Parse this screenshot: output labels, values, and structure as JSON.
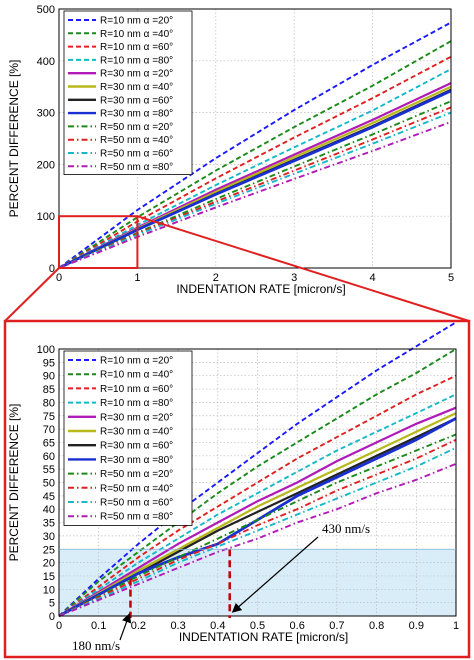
{
  "colors": {
    "zoom_box": "#e02020",
    "shade": "#cfe8f7",
    "marker": "#c00000"
  },
  "chart_data": [
    {
      "type": "line",
      "xlabel": "INDENTATION RATE [micron/s]",
      "ylabel": "PERCENT DIFFERENCE [%]",
      "xlim": [
        0,
        5
      ],
      "ylim": [
        0,
        500
      ],
      "xticks": [
        "0",
        "1",
        "2",
        "3",
        "4",
        "5"
      ],
      "yticks": [
        "0",
        "100",
        "200",
        "300",
        "400",
        "500"
      ],
      "grid": true,
      "legend_position": "top-left",
      "x": [
        0,
        1,
        2,
        3,
        4,
        5
      ],
      "series": [
        {
          "name": "R=10 nm α =20°",
          "color": "#1a1aff",
          "dash": "dashed",
          "values": [
            0,
            112,
            212,
            305,
            392,
            474
          ]
        },
        {
          "name": "R=10 nm α =40°",
          "color": "#1a8a1a",
          "dash": "dashed",
          "values": [
            0,
            98,
            188,
            272,
            352,
            438
          ]
        },
        {
          "name": "R=10 nm α =60°",
          "color": "#e02020",
          "dash": "dashed",
          "values": [
            0,
            90,
            173,
            252,
            328,
            408
          ]
        },
        {
          "name": "R=10 nm α =80°",
          "color": "#15b8c8",
          "dash": "dashed",
          "values": [
            0,
            83,
            160,
            233,
            304,
            384
          ]
        },
        {
          "name": "R=30 nm α =20°",
          "color": "#b01ab8",
          "dash": "solid",
          "values": [
            0,
            78,
            151,
            219,
            286,
            357
          ]
        },
        {
          "name": "R=30 nm α =40°",
          "color": "#b8b81a",
          "dash": "solid",
          "values": [
            0,
            76,
            147,
            214,
            280,
            350
          ]
        },
        {
          "name": "R=30 nm α =60°",
          "color": "#222222",
          "dash": "solid",
          "values": [
            0,
            74,
            143,
            209,
            274,
            344
          ]
        },
        {
          "name": "R=30 nm α =80°",
          "color": "#1a2fd0",
          "dash": "solid",
          "values": [
            0,
            74,
            142,
            207,
            272,
            342
          ]
        },
        {
          "name": "R=50 nm α =20°",
          "color": "#1a8a1a",
          "dash": "dashdot",
          "values": [
            0,
            68,
            133,
            196,
            258,
            322
          ]
        },
        {
          "name": "R=50 nm α =40°",
          "color": "#e02020",
          "dash": "dashdot",
          "values": [
            0,
            66,
            128,
            188,
            248,
            310
          ]
        },
        {
          "name": "R=50 nm α =60°",
          "color": "#15b8c8",
          "dash": "dashdot",
          "values": [
            0,
            64,
            124,
            182,
            240,
            300
          ]
        },
        {
          "name": "R=50 nm α =80°",
          "color": "#b01ab8",
          "dash": "dashdot",
          "values": [
            0,
            60,
            117,
            172,
            226,
            282
          ]
        }
      ]
    },
    {
      "type": "line",
      "xlabel": "INDENTATION RATE [micron/s]",
      "ylabel": "PERCENT DIFFERENCE [%]",
      "xlim": [
        0,
        1
      ],
      "ylim": [
        0,
        100
      ],
      "xticks": [
        "0",
        "0.1",
        "0.2",
        "0.3",
        "0.4",
        "0.5",
        "0.6",
        "0.7",
        "0.8",
        "0.9",
        "1"
      ],
      "yticks": [
        "0",
        "5",
        "10",
        "15",
        "20",
        "25",
        "30",
        "35",
        "40",
        "45",
        "50",
        "55",
        "60",
        "65",
        "70",
        "75",
        "80",
        "85",
        "90",
        "95",
        "100"
      ],
      "grid": true,
      "legend_position": "top-left",
      "shaded_band": [
        0,
        25
      ],
      "markers": [
        {
          "x": 0.18,
          "label": "180 nm/s"
        },
        {
          "x": 0.43,
          "label": "430 nm/s"
        }
      ],
      "x": [
        0,
        0.1,
        0.2,
        0.3,
        0.4,
        0.5,
        0.6,
        0.7,
        0.8,
        0.9,
        1
      ],
      "series": [
        {
          "name": "R=10 nm α =20°",
          "color": "#1a1aff",
          "dash": "dashed",
          "values": [
            0,
            14,
            27,
            39,
            50,
            61,
            72,
            82,
            92,
            101,
            110
          ]
        },
        {
          "name": "R=10 nm α =40°",
          "color": "#1a8a1a",
          "dash": "dashed",
          "values": [
            0,
            13,
            24,
            35,
            46,
            56,
            65,
            74,
            83,
            91,
            100
          ]
        },
        {
          "name": "R=10 nm α =60°",
          "color": "#e02020",
          "dash": "dashed",
          "values": [
            0,
            11,
            22,
            32,
            41,
            50,
            59,
            67,
            75,
            83,
            90
          ]
        },
        {
          "name": "R=10 nm α =80°",
          "color": "#15b8c8",
          "dash": "dashed",
          "values": [
            0,
            10,
            20,
            29,
            38,
            46,
            54,
            62,
            69,
            76,
            83
          ]
        },
        {
          "name": "R=30 nm α =20°",
          "color": "#b01ab8",
          "dash": "solid",
          "values": [
            0,
            9,
            18,
            27,
            35,
            43,
            50,
            58,
            65,
            72,
            78
          ]
        },
        {
          "name": "R=30 nm α =40°",
          "color": "#b8b81a",
          "dash": "solid",
          "values": [
            0,
            8.5,
            17,
            25,
            33,
            41,
            48,
            55,
            62,
            69,
            76
          ]
        },
        {
          "name": "R=30 nm α =60°",
          "color": "#222222",
          "dash": "solid",
          "values": [
            0,
            8,
            16,
            24,
            32,
            39,
            46,
            53,
            60,
            67,
            74
          ]
        },
        {
          "name": "R=30 nm α =80°",
          "color": "#1a2fd0",
          "dash": "solid",
          "values": [
            0,
            8,
            16,
            22,
            27,
            36,
            45,
            52,
            59,
            66,
            74
          ]
        },
        {
          "name": "R=50 nm α =20°",
          "color": "#1a8a1a",
          "dash": "dashdot",
          "values": [
            0,
            7.5,
            15,
            22,
            29,
            36,
            43,
            50,
            56,
            62,
            68
          ]
        },
        {
          "name": "R=50 nm α =40°",
          "color": "#e02020",
          "dash": "dashdot",
          "values": [
            0,
            7,
            14,
            21,
            27,
            34,
            40,
            47,
            53,
            59,
            66
          ]
        },
        {
          "name": "R=50 nm α =60°",
          "color": "#15b8c8",
          "dash": "dashdot",
          "values": [
            0,
            6.5,
            13,
            20,
            26,
            32,
            38,
            44,
            50,
            56,
            63
          ]
        },
        {
          "name": "R=50 nm α =80°",
          "color": "#b01ab8",
          "dash": "dashdot",
          "values": [
            0,
            6,
            12,
            18,
            24,
            29,
            35,
            40,
            46,
            51,
            57
          ]
        }
      ]
    }
  ]
}
